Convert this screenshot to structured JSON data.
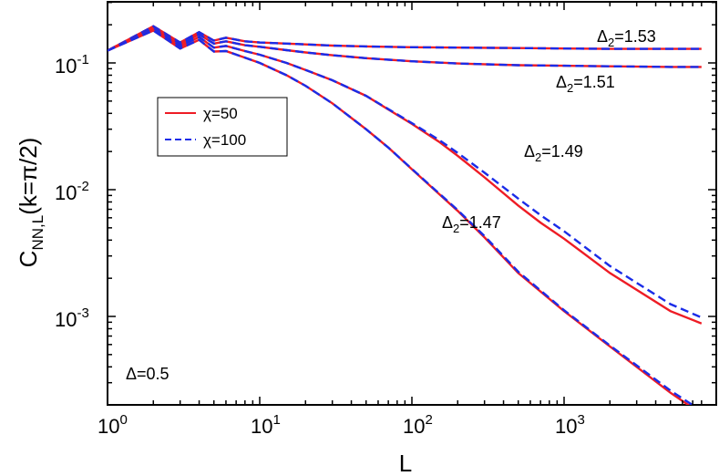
{
  "chart_data": {
    "type": "line",
    "title": "",
    "xlabel": "L",
    "ylabel": "C_NN,L(k=π/2)",
    "xscale": "log",
    "yscale": "log",
    "xlim": [
      1,
      8000
    ],
    "ylim": [
      0.0002,
      0.35
    ],
    "x_ticks": [
      {
        "base": "10",
        "exp": "0"
      },
      {
        "base": "10",
        "exp": "1"
      },
      {
        "base": "10",
        "exp": "2"
      },
      {
        "base": "10",
        "exp": "3"
      }
    ],
    "y_ticks": [
      {
        "base": "10",
        "exp": "-1"
      },
      {
        "base": "10",
        "exp": "-2"
      },
      {
        "base": "10",
        "exp": "-3"
      }
    ],
    "legend": {
      "position": "top-left",
      "entries": [
        {
          "label": "χ=50",
          "color": "#ee1c25",
          "style": "solid"
        },
        {
          "label": "χ=100",
          "color": "#1a2ce8",
          "style": "dashed"
        }
      ]
    },
    "annotations": [
      {
        "text_main": "Δ",
        "text_sub": "2",
        "text_rest": "=1.53"
      },
      {
        "text_main": "Δ",
        "text_sub": "2",
        "text_rest": "=1.51"
      },
      {
        "text_main": "Δ",
        "text_sub": "2",
        "text_rest": "=1.49"
      },
      {
        "text_main": "Δ",
        "text_sub": "2",
        "text_rest": "=1.47"
      },
      {
        "text_main": "Δ=0.5"
      }
    ],
    "series": [
      {
        "delta2": 1.53,
        "chi": 50,
        "color": "#ee1c25",
        "style": "solid",
        "x": [
          1,
          2,
          3,
          4,
          5,
          6,
          8,
          10,
          15,
          20,
          30,
          50,
          100,
          200,
          500,
          1000,
          2000,
          5000,
          8000
        ],
        "y": [
          0.125,
          0.195,
          0.145,
          0.175,
          0.15,
          0.158,
          0.148,
          0.145,
          0.142,
          0.14,
          0.137,
          0.135,
          0.133,
          0.132,
          0.131,
          0.13,
          0.129,
          0.129,
          0.129
        ]
      },
      {
        "delta2": 1.53,
        "chi": 100,
        "color": "#1a2ce8",
        "style": "dashed",
        "x": [
          1,
          2,
          3,
          4,
          5,
          6,
          8,
          10,
          15,
          20,
          30,
          50,
          100,
          200,
          500,
          1000,
          2000,
          5000,
          8000
        ],
        "y": [
          0.125,
          0.195,
          0.145,
          0.175,
          0.15,
          0.158,
          0.148,
          0.145,
          0.142,
          0.14,
          0.137,
          0.135,
          0.133,
          0.132,
          0.131,
          0.13,
          0.129,
          0.129,
          0.129
        ]
      },
      {
        "delta2": 1.51,
        "chi": 50,
        "color": "#ee1c25",
        "style": "solid",
        "x": [
          1,
          2,
          3,
          4,
          5,
          6,
          8,
          10,
          15,
          20,
          30,
          50,
          100,
          200,
          500,
          1000,
          2000,
          5000,
          8000
        ],
        "y": [
          0.125,
          0.19,
          0.14,
          0.168,
          0.142,
          0.148,
          0.138,
          0.134,
          0.126,
          0.121,
          0.115,
          0.109,
          0.103,
          0.099,
          0.096,
          0.095,
          0.094,
          0.093,
          0.093
        ]
      },
      {
        "delta2": 1.51,
        "chi": 100,
        "color": "#1a2ce8",
        "style": "dashed",
        "x": [
          1,
          2,
          3,
          4,
          5,
          6,
          8,
          10,
          15,
          20,
          30,
          50,
          100,
          200,
          500,
          1000,
          2000,
          5000,
          8000
        ],
        "y": [
          0.125,
          0.19,
          0.14,
          0.168,
          0.142,
          0.148,
          0.138,
          0.134,
          0.126,
          0.121,
          0.115,
          0.109,
          0.103,
          0.099,
          0.096,
          0.095,
          0.094,
          0.093,
          0.093
        ]
      },
      {
        "delta2": 1.49,
        "chi": 50,
        "color": "#ee1c25",
        "style": "solid",
        "x": [
          1,
          2,
          3,
          4,
          5,
          6,
          8,
          10,
          15,
          20,
          30,
          50,
          100,
          150,
          200,
          300,
          500,
          700,
          1000,
          2000,
          5000,
          8000
        ],
        "y": [
          0.125,
          0.185,
          0.135,
          0.16,
          0.132,
          0.136,
          0.124,
          0.116,
          0.1,
          0.088,
          0.073,
          0.055,
          0.033,
          0.024,
          0.0185,
          0.0125,
          0.0075,
          0.0055,
          0.0041,
          0.0022,
          0.0011,
          0.00088
        ]
      },
      {
        "delta2": 1.49,
        "chi": 100,
        "color": "#1a2ce8",
        "style": "dashed",
        "x": [
          1,
          2,
          3,
          4,
          5,
          6,
          8,
          10,
          15,
          20,
          30,
          50,
          100,
          150,
          200,
          300,
          500,
          700,
          1000,
          2000,
          5000,
          8000
        ],
        "y": [
          0.125,
          0.185,
          0.135,
          0.16,
          0.132,
          0.136,
          0.124,
          0.116,
          0.1,
          0.088,
          0.073,
          0.055,
          0.0335,
          0.0248,
          0.0195,
          0.0136,
          0.0085,
          0.0063,
          0.0047,
          0.0025,
          0.00125,
          0.00098
        ]
      },
      {
        "delta2": 1.47,
        "chi": 50,
        "color": "#ee1c25",
        "style": "solid",
        "x": [
          1,
          2,
          3,
          4,
          5,
          6,
          8,
          10,
          15,
          20,
          30,
          50,
          70,
          100,
          150,
          200,
          300,
          500,
          1000,
          2000,
          5000,
          8000
        ],
        "y": [
          0.125,
          0.18,
          0.13,
          0.152,
          0.123,
          0.124,
          0.11,
          0.1,
          0.08,
          0.066,
          0.048,
          0.03,
          0.0215,
          0.0145,
          0.0093,
          0.0068,
          0.0042,
          0.0022,
          0.0011,
          0.00058,
          0.00025,
          0.00017
        ]
      },
      {
        "delta2": 1.47,
        "chi": 100,
        "color": "#1a2ce8",
        "style": "dashed",
        "x": [
          1,
          2,
          3,
          4,
          5,
          6,
          8,
          10,
          15,
          20,
          30,
          50,
          70,
          100,
          150,
          200,
          300,
          500,
          1000,
          2000,
          5000,
          8000
        ],
        "y": [
          0.125,
          0.18,
          0.13,
          0.152,
          0.123,
          0.124,
          0.11,
          0.1,
          0.08,
          0.066,
          0.048,
          0.03,
          0.0215,
          0.0146,
          0.0094,
          0.0069,
          0.0043,
          0.00225,
          0.00112,
          0.00059,
          0.00026,
          0.00018
        ]
      }
    ]
  }
}
